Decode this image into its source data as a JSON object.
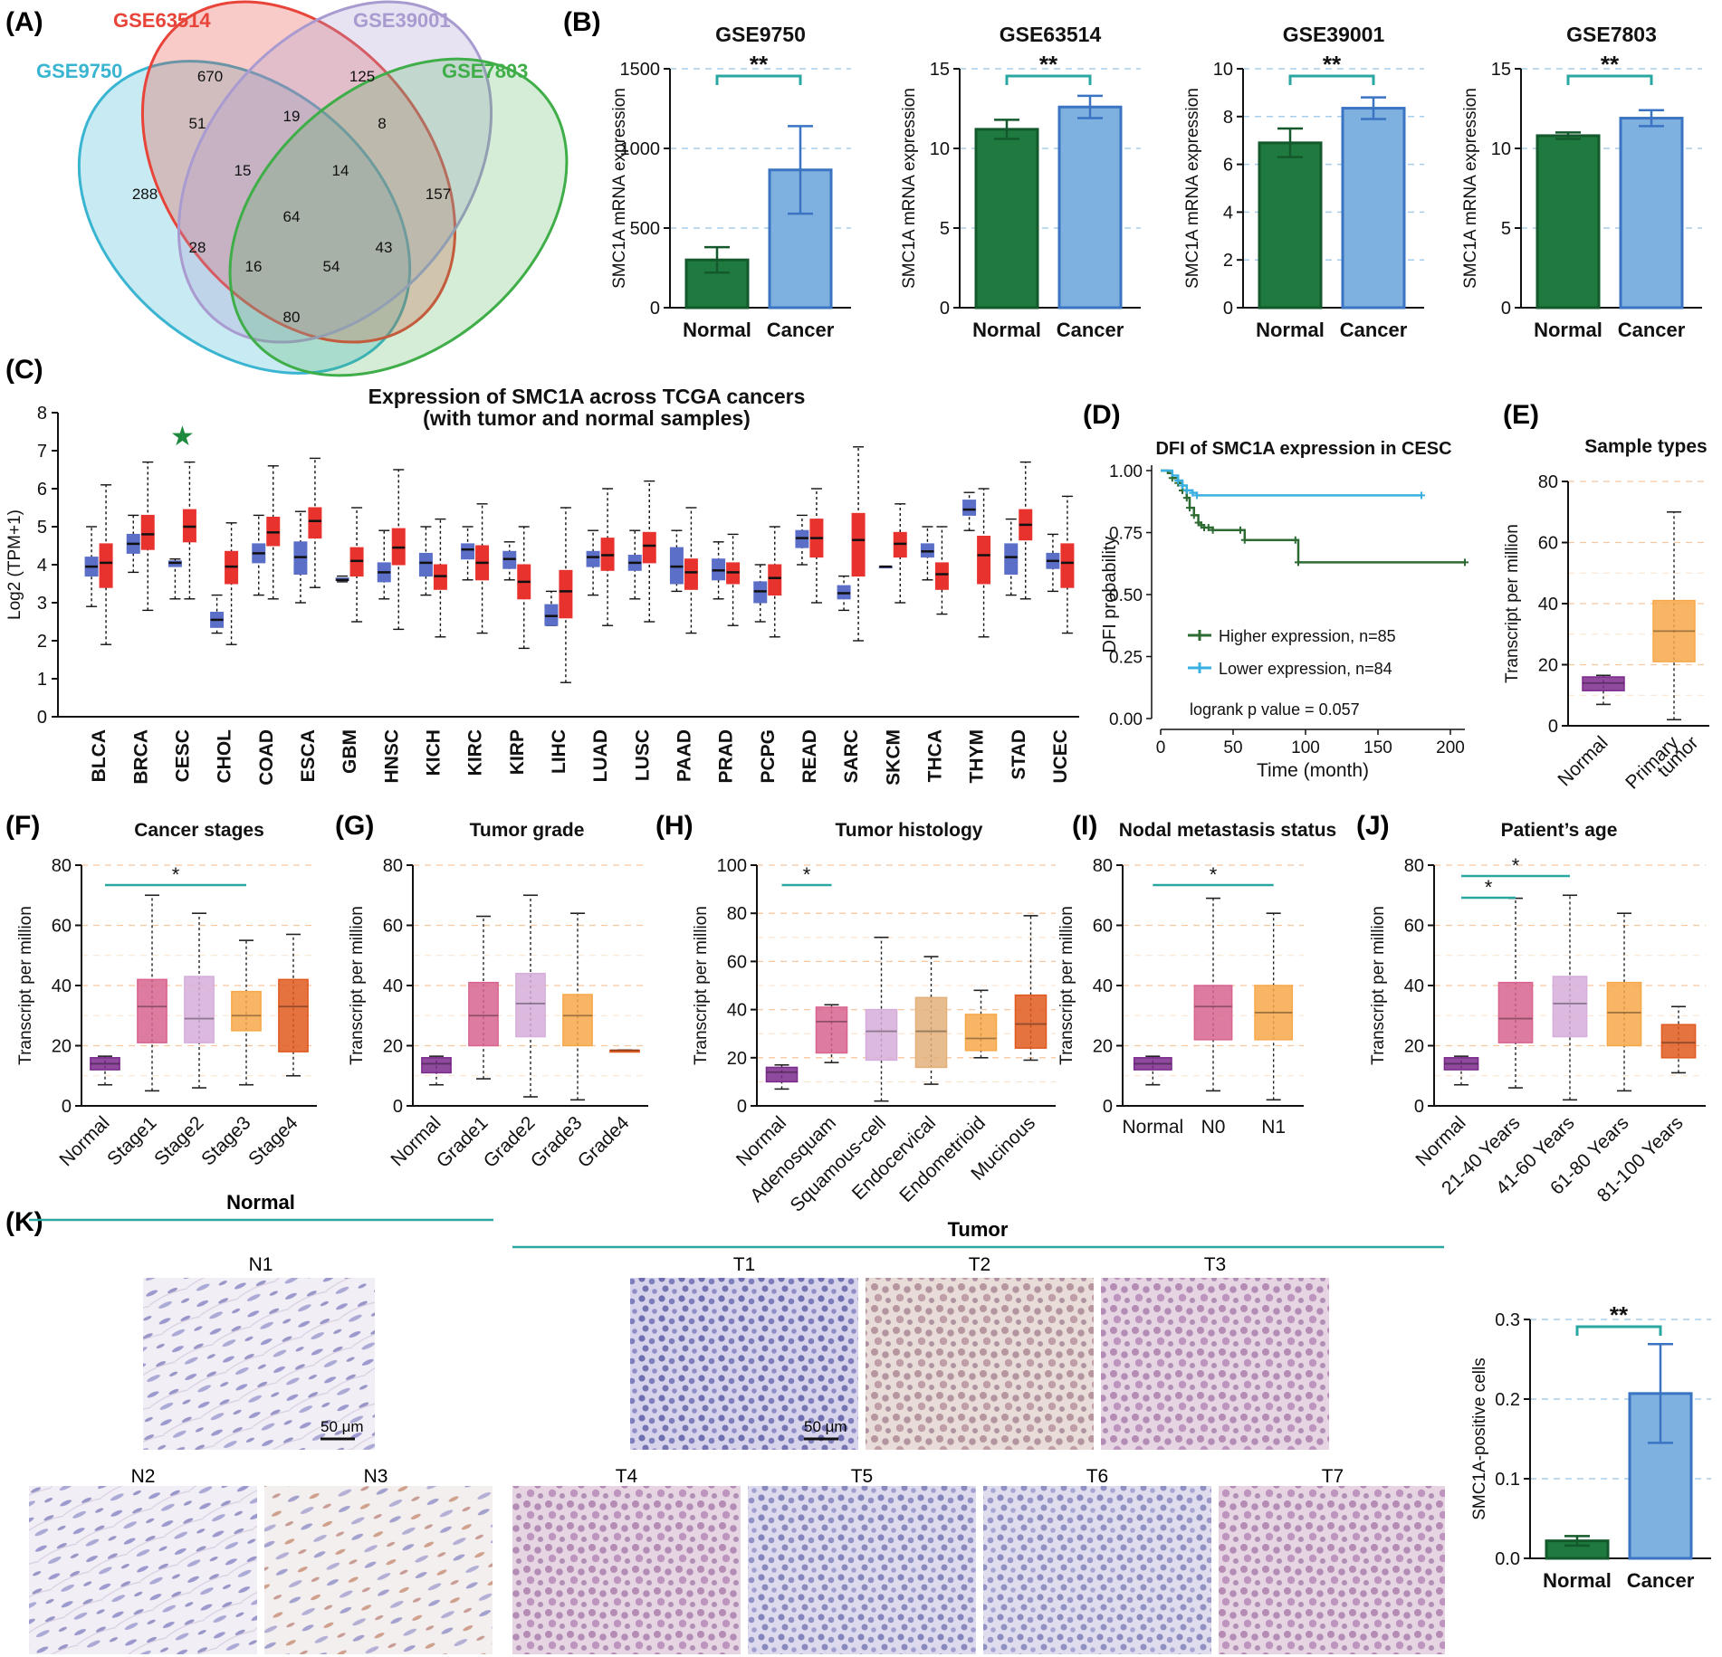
{
  "panel_labels": [
    "(A)",
    "(B)",
    "(C)",
    "(D)",
    "(E)",
    "(F)",
    "(G)",
    "(H)",
    "(I)",
    "(J)",
    "(K)"
  ],
  "chart_data": [
    {
      "id": "A",
      "type": "venn",
      "sets": [
        "GSE9750",
        "GSE63514",
        "GSE39001",
        "GSE7803"
      ],
      "set_colors": [
        "#3ab5d1",
        "#e8443a",
        "#a99bd0",
        "#3fae49"
      ],
      "region_values": [
        "670",
        "125",
        "288",
        "157",
        "51",
        "19",
        "8",
        "15",
        "14",
        "64",
        "28",
        "43",
        "16",
        "54",
        "80"
      ]
    },
    {
      "id": "B",
      "type": "bar",
      "ylabel": "SMC1A mRNA expression",
      "categories": [
        "Normal",
        "Cancer"
      ],
      "colors": [
        "#1e7a3e",
        "#7fb1e0"
      ],
      "significance": "**",
      "panels": [
        {
          "title": "GSE9750",
          "values": [
            300,
            865
          ],
          "errors": [
            80,
            275
          ],
          "ylim": [
            0,
            1500
          ],
          "ticks": [
            "0",
            "500",
            "1000",
            "1500"
          ],
          "tick_values": [
            0,
            500,
            1000,
            1500
          ]
        },
        {
          "title": "GSE63514",
          "values": [
            11.2,
            12.6
          ],
          "errors": [
            0.6,
            0.7
          ],
          "ylim": [
            0,
            15
          ],
          "ticks": [
            "0",
            "5",
            "10",
            "15"
          ],
          "tick_values": [
            0,
            5,
            10,
            15
          ]
        },
        {
          "title": "GSE39001",
          "values": [
            6.9,
            8.35
          ],
          "errors": [
            0.6,
            0.45
          ],
          "ylim": [
            0,
            10
          ],
          "ticks": [
            "0",
            "2",
            "4",
            "6",
            "8",
            "10"
          ],
          "tick_values": [
            0,
            2,
            4,
            6,
            8,
            10
          ]
        },
        {
          "title": "GSE7803",
          "values": [
            10.8,
            11.9
          ],
          "errors": [
            0.2,
            0.5
          ],
          "ylim": [
            0,
            15
          ],
          "ticks": [
            "0",
            "5",
            "10",
            "15"
          ],
          "tick_values": [
            0,
            5,
            10,
            15
          ]
        }
      ]
    },
    {
      "id": "C",
      "type": "boxplot",
      "title_line1": "Expression of SMC1A across TCGA cancers",
      "title_line2": "(with tumor and normal samples)",
      "ylabel": "Log2 (TPM+1)",
      "ylim": [
        0,
        8
      ],
      "ticks": [
        "0",
        "1",
        "2",
        "3",
        "4",
        "5",
        "6",
        "7",
        "8"
      ],
      "highlight": "CESC",
      "star": "★",
      "normal_color": "#5b6ec8",
      "tumor_color": "#e8322e",
      "categories": [
        "BLCA",
        "BRCA",
        "CESC",
        "CHOL",
        "COAD",
        "ESCA",
        "GBM",
        "HNSC",
        "KICH",
        "KIRC",
        "KIRP",
        "LIHC",
        "LUAD",
        "LUSC",
        "PAAD",
        "PRAD",
        "PCPG",
        "READ",
        "SARC",
        "SKCM",
        "THCA",
        "THYM",
        "STAD",
        "UCEC"
      ],
      "normal": [
        [
          2.9,
          3.7,
          3.95,
          4.2,
          5.0
        ],
        [
          3.8,
          4.3,
          4.55,
          4.8,
          5.3
        ],
        [
          3.1,
          3.95,
          4.05,
          4.1,
          4.15
        ],
        [
          2.2,
          2.35,
          2.55,
          2.75,
          3.2
        ],
        [
          3.2,
          4.05,
          4.3,
          4.55,
          5.3
        ],
        [
          3.0,
          3.75,
          4.2,
          4.6,
          5.4
        ],
        [
          3.55,
          3.58,
          3.6,
          3.65,
          3.7
        ],
        [
          3.1,
          3.55,
          3.8,
          4.05,
          4.9
        ],
        [
          3.2,
          3.7,
          4.05,
          4.3,
          5.0
        ],
        [
          3.6,
          4.15,
          4.4,
          4.55,
          5.0
        ],
        [
          3.6,
          3.9,
          4.15,
          4.35,
          4.6
        ],
        [
          2.4,
          2.4,
          2.65,
          2.95,
          3.3
        ],
        [
          3.2,
          3.95,
          4.2,
          4.35,
          4.9
        ],
        [
          3.1,
          3.85,
          4.05,
          4.25,
          4.9
        ],
        [
          3.3,
          3.5,
          3.95,
          4.45,
          4.9
        ],
        [
          3.1,
          3.6,
          3.85,
          4.15,
          4.6
        ],
        [
          2.5,
          3.0,
          3.3,
          3.55,
          4.0
        ],
        [
          4.0,
          4.45,
          4.7,
          4.9,
          5.3
        ],
        [
          2.8,
          3.1,
          3.25,
          3.45,
          3.7
        ],
        [
          3.95,
          3.95,
          3.95,
          3.95,
          3.95
        ],
        [
          3.6,
          4.2,
          4.35,
          4.55,
          5.0
        ],
        [
          4.9,
          5.3,
          5.45,
          5.7,
          5.9
        ],
        [
          3.2,
          3.75,
          4.2,
          4.55,
          5.2
        ],
        [
          3.3,
          3.9,
          4.1,
          4.3,
          4.8
        ]
      ],
      "tumor": [
        [
          1.9,
          3.4,
          4.05,
          4.55,
          6.1
        ],
        [
          2.8,
          4.4,
          4.8,
          5.3,
          6.7
        ],
        [
          3.1,
          4.6,
          5.0,
          5.45,
          6.7
        ],
        [
          1.9,
          3.5,
          3.95,
          4.35,
          5.1
        ],
        [
          3.1,
          4.5,
          4.85,
          5.25,
          6.6
        ],
        [
          3.4,
          4.7,
          5.15,
          5.5,
          6.8
        ],
        [
          2.5,
          3.7,
          4.1,
          4.45,
          5.5
        ],
        [
          2.3,
          4.0,
          4.45,
          4.95,
          6.5
        ],
        [
          2.1,
          3.35,
          3.7,
          4.0,
          5.2
        ],
        [
          2.2,
          3.6,
          4.05,
          4.5,
          5.6
        ],
        [
          1.8,
          3.1,
          3.55,
          4.0,
          5.0
        ],
        [
          0.9,
          2.6,
          3.3,
          3.85,
          5.5
        ],
        [
          2.4,
          3.85,
          4.25,
          4.7,
          6.0
        ],
        [
          2.5,
          4.05,
          4.5,
          4.85,
          6.2
        ],
        [
          2.2,
          3.35,
          3.8,
          4.15,
          5.5
        ],
        [
          2.4,
          3.5,
          3.8,
          4.05,
          4.8
        ],
        [
          2.1,
          3.2,
          3.65,
          4.0,
          5.0
        ],
        [
          3.0,
          4.2,
          4.7,
          5.2,
          6.0
        ],
        [
          2.0,
          3.7,
          4.65,
          5.35,
          7.1
        ],
        [
          3.0,
          4.2,
          4.55,
          4.85,
          5.6
        ],
        [
          2.7,
          3.35,
          3.75,
          4.05,
          5.0
        ],
        [
          2.1,
          3.5,
          4.25,
          4.75,
          6.0
        ],
        [
          3.1,
          4.65,
          5.05,
          5.45,
          6.7
        ],
        [
          2.2,
          3.4,
          4.05,
          4.55,
          5.8
        ]
      ]
    },
    {
      "id": "D",
      "type": "line",
      "title": "DFI of SMC1A expression in CESC",
      "xlabel": "Time (month)",
      "ylabel": "DFI probability",
      "xlim": [
        0,
        210
      ],
      "ylim": [
        0,
        1
      ],
      "xticks": [
        "0",
        "50",
        "100",
        "150",
        "200"
      ],
      "xtick_values": [
        0,
        50,
        100,
        150,
        200
      ],
      "yticks": [
        "0.00",
        "0.25",
        "0.50",
        "0.75",
        "1.00"
      ],
      "ytick_values": [
        0,
        0.25,
        0.5,
        0.75,
        1.0
      ],
      "pvalue": "logrank p value = 0.057",
      "series": [
        {
          "name": "Higher expression, n=85",
          "color": "#2e6b33",
          "x": [
            0,
            5,
            8,
            12,
            15,
            18,
            20,
            23,
            26,
            28,
            30,
            33,
            36,
            55,
            58,
            93,
            95,
            210
          ],
          "y": [
            1.0,
            0.99,
            0.97,
            0.95,
            0.92,
            0.89,
            0.85,
            0.82,
            0.79,
            0.78,
            0.77,
            0.77,
            0.76,
            0.76,
            0.72,
            0.72,
            0.63,
            0.63
          ]
        },
        {
          "name": "Lower expression, n=84",
          "color": "#3ab0e0",
          "x": [
            0,
            8,
            12,
            15,
            18,
            22,
            25,
            180
          ],
          "y": [
            1.0,
            0.98,
            0.96,
            0.94,
            0.92,
            0.91,
            0.9,
            0.9
          ]
        }
      ]
    },
    {
      "id": "E",
      "type": "boxplot",
      "title": "Sample types",
      "ylabel": "Transcript per million",
      "ylim": [
        0,
        80
      ],
      "ticks": [
        "0",
        "20",
        "40",
        "60",
        "80"
      ],
      "categories": [
        "Normal",
        "Primary\ntumor"
      ],
      "colors": [
        "#7b2a8c",
        "#f7a84a"
      ],
      "boxes": [
        [
          7,
          11.5,
          14,
          16,
          16.5
        ],
        [
          2,
          21,
          31,
          41,
          70
        ]
      ]
    },
    {
      "id": "F",
      "type": "boxplot",
      "title": "Cancer stages",
      "ylabel": "Transcript per million",
      "ylim": [
        0,
        80
      ],
      "ticks": [
        "0",
        "20",
        "40",
        "60",
        "80"
      ],
      "categories": [
        "Normal",
        "Stage1",
        "Stage2",
        "Stage3",
        "Stage4"
      ],
      "colors": [
        "#7b2a8c",
        "#d8648f",
        "#d6aedb",
        "#f7a84a",
        "#e05a1f"
      ],
      "boxes": [
        [
          7,
          12,
          14,
          16,
          16.5
        ],
        [
          5,
          21,
          33,
          42,
          70
        ],
        [
          6,
          21,
          29,
          43,
          64
        ],
        [
          7,
          25,
          30,
          38,
          55
        ],
        [
          10,
          18,
          33,
          42,
          57
        ]
      ],
      "sig": [
        {
          "from": 0,
          "to": 3,
          "label": "*"
        }
      ]
    },
    {
      "id": "G",
      "type": "boxplot",
      "title": "Tumor grade",
      "ylabel": "Transcript per million",
      "ylim": [
        0,
        80
      ],
      "ticks": [
        "0",
        "20",
        "40",
        "60",
        "80"
      ],
      "categories": [
        "Normal",
        "Grade1",
        "Grade2",
        "Grade3",
        "Grade4"
      ],
      "colors": [
        "#7b2a8c",
        "#d8648f",
        "#d6aedb",
        "#f7a84a",
        "#e05a1f"
      ],
      "boxes": [
        [
          7,
          11,
          14,
          16,
          16.5
        ],
        [
          9,
          20,
          30,
          41,
          63
        ],
        [
          3,
          23,
          34,
          44,
          70
        ],
        [
          2,
          20,
          30,
          37,
          64
        ],
        [
          18.5,
          18.5,
          18.5,
          18.5,
          18.5
        ]
      ],
      "sig": []
    },
    {
      "id": "H",
      "type": "boxplot",
      "title": "Tumor histology",
      "ylabel": "Transcript per million",
      "ylim": [
        0,
        100
      ],
      "ticks": [
        "0",
        "20",
        "40",
        "60",
        "80",
        "100"
      ],
      "categories": [
        "Normal",
        "Adenosquam",
        "Squamous-cell",
        "Endocervical",
        "Endometrioid",
        "Mucinous"
      ],
      "colors": [
        "#7b2a8c",
        "#d8648f",
        "#d6aedb",
        "#e3b07a",
        "#f7a84a",
        "#e05a1f"
      ],
      "boxes": [
        [
          7,
          10,
          14,
          16,
          17
        ],
        [
          18,
          22,
          35,
          41,
          42
        ],
        [
          2,
          19,
          31,
          40,
          70
        ],
        [
          9,
          16,
          31,
          45,
          62
        ],
        [
          20,
          23,
          28,
          38,
          48
        ],
        [
          19,
          24,
          34,
          46,
          79
        ]
      ],
      "sig": [
        {
          "from": 0,
          "to": 1,
          "label": "*"
        }
      ]
    },
    {
      "id": "I",
      "type": "boxplot",
      "title": "Nodal metastasis status",
      "ylabel": "Transcript per million",
      "ylim": [
        0,
        80
      ],
      "ticks": [
        "0",
        "20",
        "40",
        "60",
        "80"
      ],
      "categories": [
        "Normal",
        "N0",
        "N1"
      ],
      "colors": [
        "#7b2a8c",
        "#d8648f",
        "#f7a84a"
      ],
      "boxes": [
        [
          7,
          12,
          14,
          16,
          16.5
        ],
        [
          5,
          22,
          33,
          40,
          69
        ],
        [
          2,
          22,
          31,
          40,
          64
        ]
      ],
      "sig": [
        {
          "from": 0,
          "to": 2,
          "label": "*"
        }
      ]
    },
    {
      "id": "J",
      "type": "boxplot",
      "title": "Patient’s age",
      "ylabel": "Transcript per million",
      "ylim": [
        0,
        80
      ],
      "ticks": [
        "0",
        "20",
        "40",
        "60",
        "80"
      ],
      "categories": [
        "Normal",
        "21-40 Years",
        "41-60 Years",
        "61-80 Years",
        "81-100 Years"
      ],
      "colors": [
        "#7b2a8c",
        "#d8648f",
        "#d6aedb",
        "#f7a84a",
        "#e05a1f"
      ],
      "boxes": [
        [
          7,
          12,
          14,
          16,
          16.5
        ],
        [
          6,
          21,
          29,
          41,
          69
        ],
        [
          2,
          23,
          34,
          43,
          70
        ],
        [
          5,
          20,
          31,
          41,
          64
        ],
        [
          11,
          16,
          21,
          27,
          33
        ]
      ],
      "sig": [
        {
          "from": 0,
          "to": 1,
          "label": "*"
        },
        {
          "from": 0,
          "to": 2,
          "label": "*"
        }
      ]
    },
    {
      "id": "K",
      "type": "bar",
      "ylabel": "SMC1A-positive cells",
      "categories": [
        "Normal",
        "Cancer"
      ],
      "colors": [
        "#1e7a3e",
        "#7fb1e0"
      ],
      "values": [
        0.022,
        0.207
      ],
      "errors": [
        0.006,
        0.062
      ],
      "ylim": [
        0,
        0.3
      ],
      "ticks": [
        "0.0",
        "0.1",
        "0.2",
        "0.3"
      ],
      "tick_values": [
        0,
        0.1,
        0.2,
        0.3
      ],
      "significance": "**"
    }
  ],
  "histology": {
    "normal_header": "Normal",
    "tumor_header": "Tumor",
    "normal_labels": [
      "N1",
      "N2",
      "N3"
    ],
    "tumor_labels": [
      "T1",
      "T2",
      "T3",
      "T4",
      "T5",
      "T6",
      "T7"
    ],
    "scale_bar": "50 μm"
  }
}
